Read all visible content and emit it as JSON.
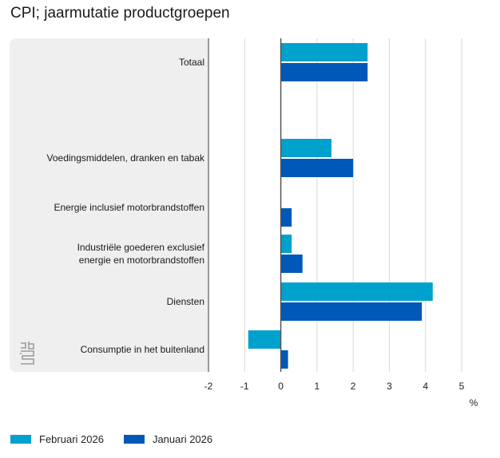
{
  "chart_data": {
    "type": "bar",
    "orientation": "horizontal",
    "title": "CPI; jaarmutatie productgroepen",
    "categories": [
      "Totaal",
      "",
      "Voedingsmiddelen, dranken en tabak",
      "Energie inclusief motorbrandstoffen",
      "Industriële goederen exclusief energie en motorbrandstoffen",
      "Diensten",
      "Consumptie in het buitenland"
    ],
    "category_lines": [
      [
        "Totaal"
      ],
      [],
      [
        "Voedingsmiddelen, dranken en tabak"
      ],
      [
        "Energie inclusief motorbrandstoffen"
      ],
      [
        "Industriële goederen exclusief",
        "energie en motorbrandstoffen"
      ],
      [
        "Diensten"
      ],
      [
        "Consumptie in het buitenland"
      ]
    ],
    "series": [
      {
        "name": "Februari 2026",
        "color": "#00a1cd",
        "values": [
          2.4,
          null,
          1.4,
          0.0,
          0.3,
          4.2,
          -0.9
        ]
      },
      {
        "name": "Januari 2026",
        "color": "#0058b8",
        "values": [
          2.4,
          null,
          2.0,
          0.3,
          0.6,
          3.9,
          0.2
        ]
      }
    ],
    "xlabel": "%",
    "ylabel": "",
    "xlim": [
      -2,
      5
    ],
    "xticks": [
      "-2",
      "-1",
      "0",
      "1",
      "2",
      "3",
      "4",
      "5"
    ],
    "grid": true,
    "legend_position": "bottom-left"
  },
  "logo_text": "cbs",
  "colors": {
    "gridline": "#d9d9d9",
    "axis": "#555555",
    "panel": "#efefef"
  }
}
